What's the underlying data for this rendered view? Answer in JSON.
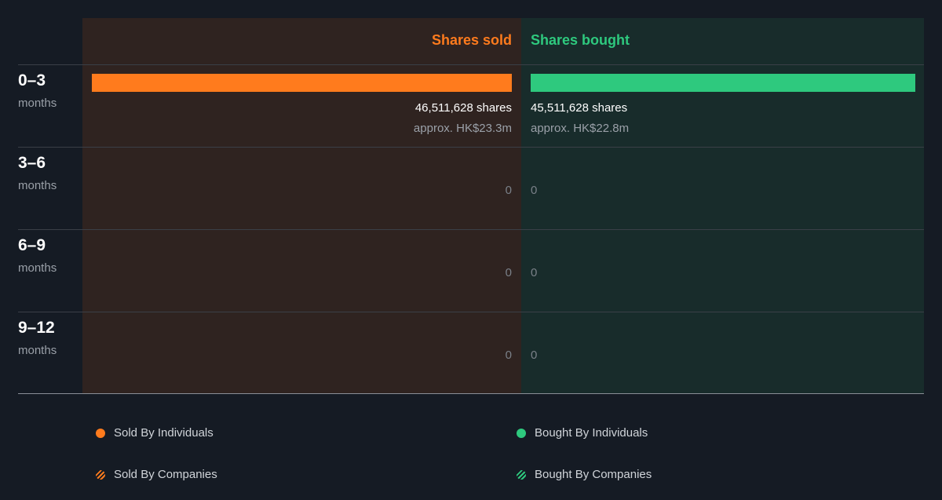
{
  "chart_data": {
    "type": "bar",
    "headers": {
      "sold": "Shares sold",
      "bought": "Shares bought"
    },
    "categories": [
      {
        "period": "0–3",
        "unit": "months"
      },
      {
        "period": "3–6",
        "unit": "months"
      },
      {
        "period": "6–9",
        "unit": "months"
      },
      {
        "period": "9–12",
        "unit": "months"
      }
    ],
    "series": [
      {
        "name": "Shares sold",
        "values": [
          46511628,
          0,
          0,
          0
        ]
      },
      {
        "name": "Shares bought",
        "values": [
          45511628,
          0,
          0,
          0
        ]
      }
    ],
    "labels": {
      "sold": [
        {
          "shares": "46,511,628 shares",
          "approx": "approx. HK$23.3m"
        },
        {
          "zero": "0"
        },
        {
          "zero": "0"
        },
        {
          "zero": "0"
        }
      ],
      "bought": [
        {
          "shares": "45,511,628 shares",
          "approx": "approx. HK$22.8m"
        },
        {
          "zero": "0"
        },
        {
          "zero": "0"
        },
        {
          "zero": "0"
        }
      ]
    },
    "legend": [
      {
        "label": "Sold By Individuals",
        "style": "dot",
        "color": "#ff7b1d"
      },
      {
        "label": "Sold By Companies",
        "style": "hatched",
        "color": "#ff7b1d"
      },
      {
        "label": "Bought By Individuals",
        "style": "dot",
        "color": "#2ec97e"
      },
      {
        "label": "Bought By Companies",
        "style": "hatched",
        "color": "#2ec97e"
      }
    ],
    "colors": {
      "sold": "#ff7b1d",
      "bought": "#2ec97e",
      "background": "#151b24"
    },
    "grid": true,
    "legend_position": "bottom"
  }
}
